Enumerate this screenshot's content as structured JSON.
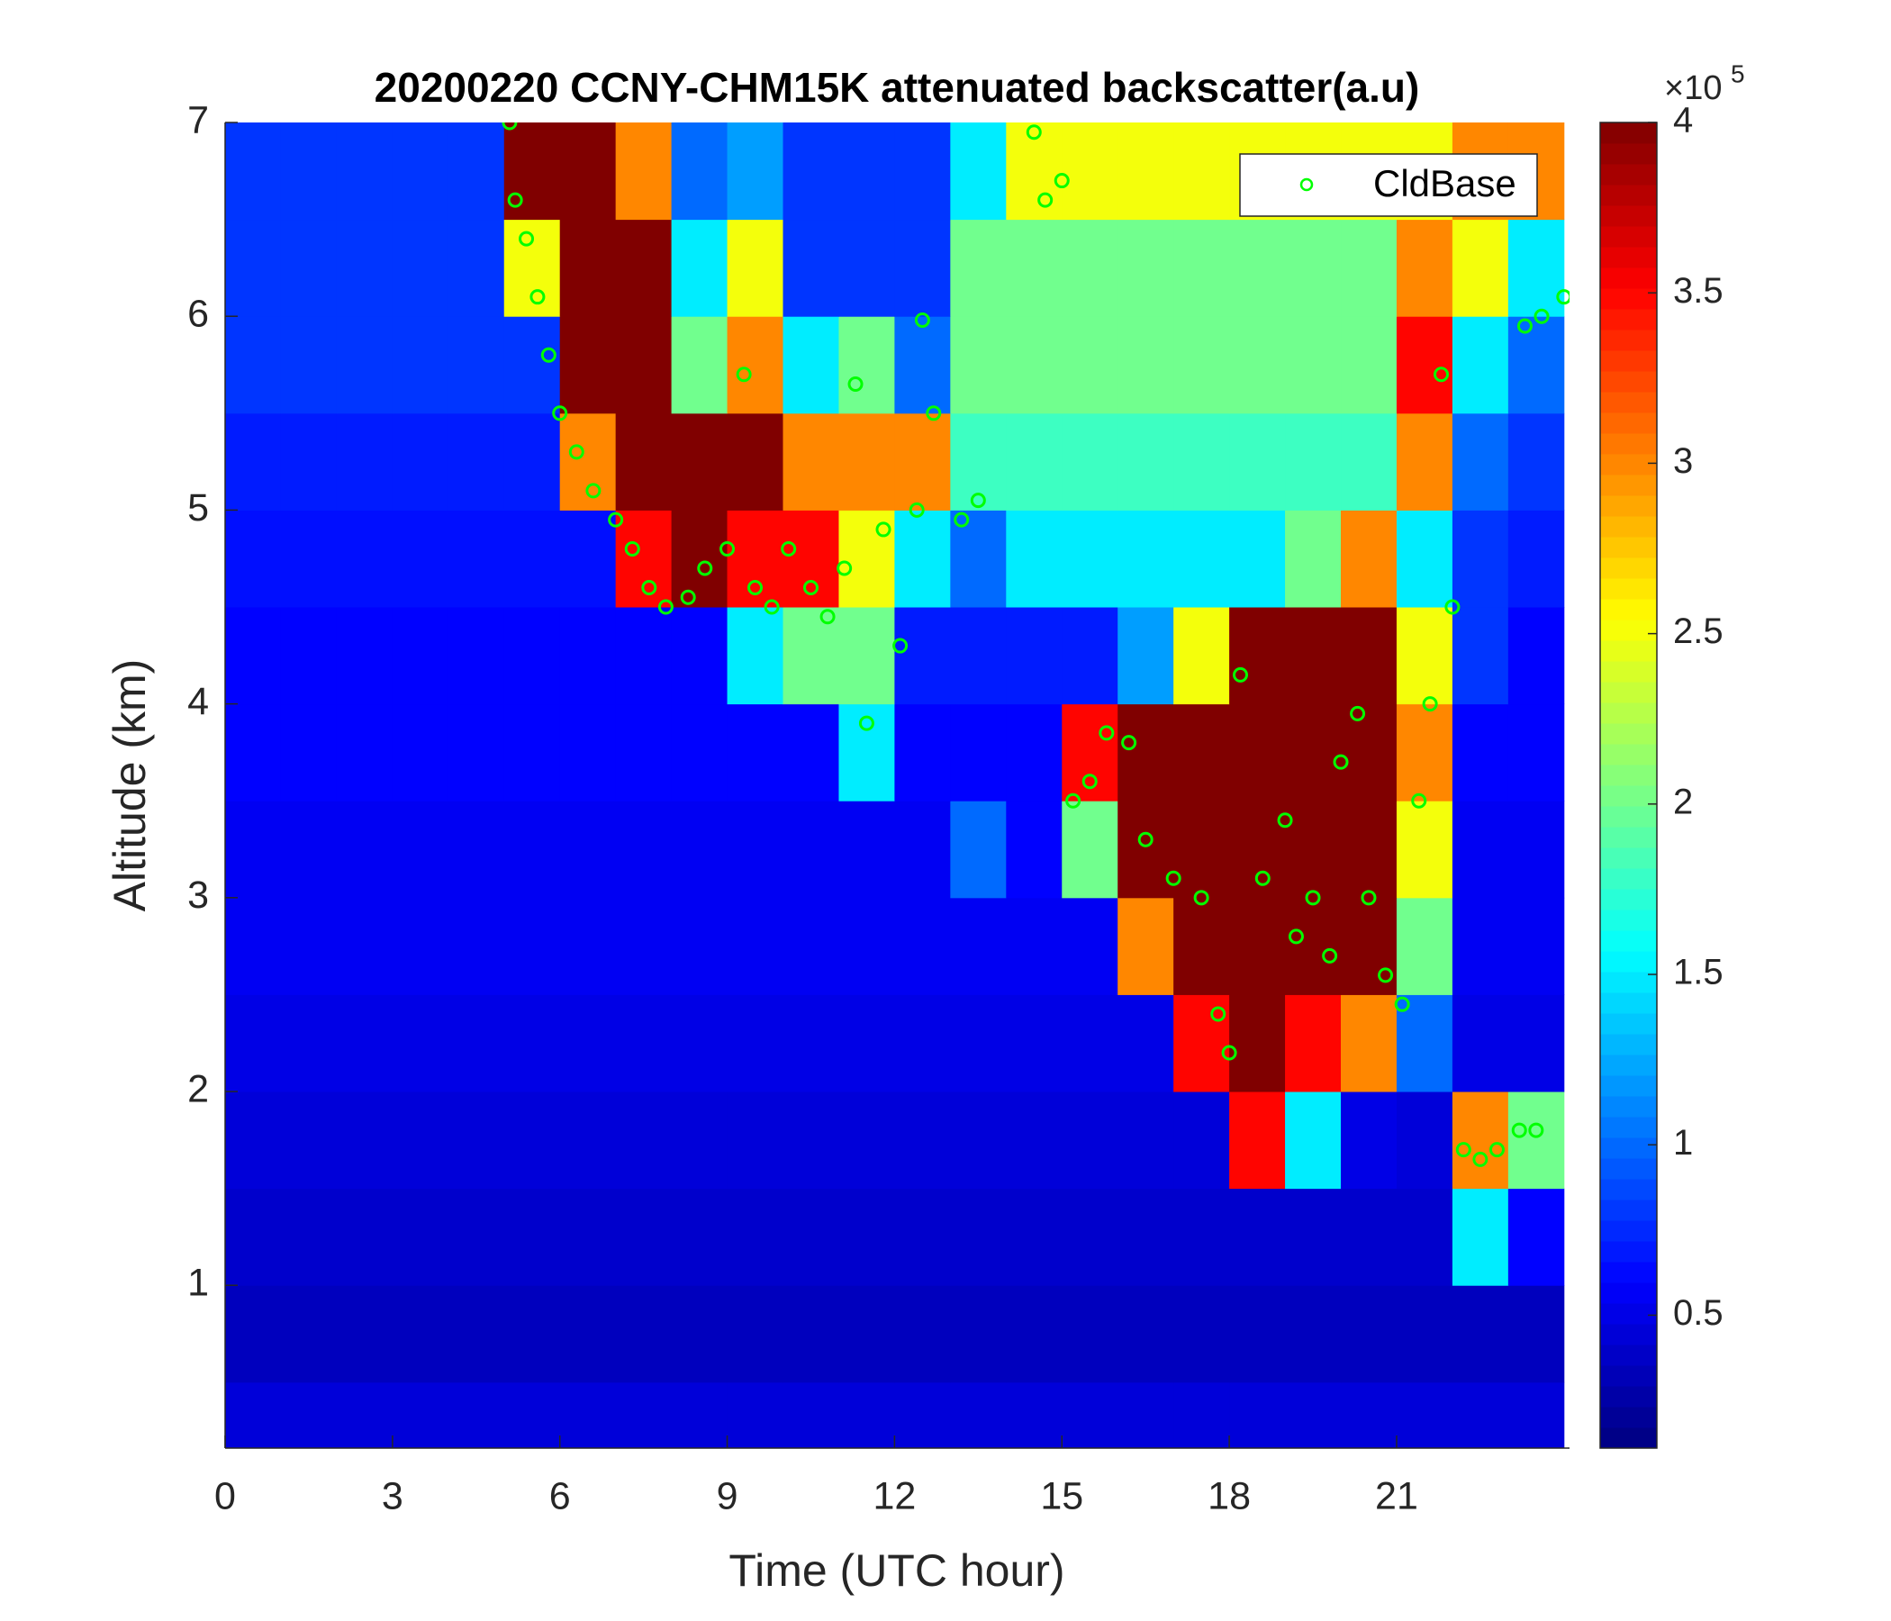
{
  "chart_data": {
    "type": "heatmap",
    "title": "20200220 CCNY-CHM15K attenuated backscatter(a.u)",
    "xlabel": "Time (UTC hour)",
    "ylabel": "Altitude (km)",
    "xlim": [
      0,
      24.1
    ],
    "ylim": [
      0.16,
      7
    ],
    "xticks": [
      0,
      3,
      6,
      9,
      12,
      15,
      18,
      21
    ],
    "yticks": [
      1,
      2,
      3,
      4,
      5,
      6,
      7
    ],
    "colormap": "jet",
    "clim": [
      11000,
      400000
    ],
    "cticks": [
      {
        "value": 50000,
        "label": "0.5"
      },
      {
        "value": 100000,
        "label": "1"
      },
      {
        "value": 150000,
        "label": "1.5"
      },
      {
        "value": 200000,
        "label": "2"
      },
      {
        "value": 250000,
        "label": "2.5"
      },
      {
        "value": 300000,
        "label": "3"
      },
      {
        "value": 350000,
        "label": "3.5"
      },
      {
        "value": 400000,
        "label": "4"
      }
    ],
    "colorbar_exponent": {
      "base": "×10",
      "power": "5"
    },
    "x_edges": [
      0,
      1,
      2,
      3,
      4,
      5,
      6,
      7,
      8,
      9,
      10,
      11,
      12,
      13,
      14,
      15,
      16,
      17,
      18,
      19,
      20,
      21,
      22,
      23,
      24
    ],
    "y_edges": [
      0,
      0.5,
      1,
      1.5,
      2,
      2.5,
      3,
      3.5,
      4,
      4.5,
      5,
      5.5,
      6,
      6.5,
      7
    ],
    "z": [
      [
        45000,
        45000,
        45000,
        45000,
        45000,
        45000,
        45000,
        45000,
        45000,
        45000,
        45000,
        45000,
        45000,
        45000,
        45000,
        45000,
        45000,
        45000,
        45000,
        45000,
        45000,
        45000,
        45000,
        45000
      ],
      [
        35000,
        35000,
        35000,
        35000,
        35000,
        35000,
        35000,
        35000,
        35000,
        35000,
        35000,
        35000,
        35000,
        35000,
        35000,
        35000,
        35000,
        35000,
        35000,
        35000,
        35000,
        35000,
        35000,
        35000
      ],
      [
        40000,
        40000,
        40000,
        40000,
        40000,
        40000,
        40000,
        40000,
        40000,
        40000,
        40000,
        40000,
        40000,
        40000,
        40000,
        40000,
        40000,
        40000,
        40000,
        40000,
        40000,
        40000,
        150000,
        60000
      ],
      [
        45000,
        45000,
        45000,
        45000,
        45000,
        45000,
        45000,
        45000,
        45000,
        45000,
        45000,
        45000,
        45000,
        45000,
        45000,
        45000,
        45000,
        45000,
        350000,
        150000,
        50000,
        45000,
        300000,
        200000
      ],
      [
        50000,
        50000,
        50000,
        50000,
        50000,
        50000,
        50000,
        50000,
        50000,
        50000,
        50000,
        50000,
        50000,
        50000,
        50000,
        50000,
        50000,
        350000,
        400000,
        350000,
        300000,
        100000,
        50000,
        50000
      ],
      [
        55000,
        55000,
        55000,
        55000,
        55000,
        55000,
        55000,
        55000,
        55000,
        55000,
        55000,
        55000,
        55000,
        55000,
        55000,
        55000,
        300000,
        400000,
        400000,
        400000,
        400000,
        200000,
        55000,
        55000
      ],
      [
        55000,
        55000,
        55000,
        55000,
        55000,
        55000,
        55000,
        55000,
        55000,
        55000,
        55000,
        55000,
        55000,
        100000,
        60000,
        200000,
        400000,
        400000,
        400000,
        400000,
        400000,
        250000,
        55000,
        55000
      ],
      [
        60000,
        60000,
        60000,
        60000,
        60000,
        60000,
        60000,
        60000,
        60000,
        60000,
        60000,
        150000,
        60000,
        60000,
        60000,
        350000,
        400000,
        400000,
        400000,
        400000,
        400000,
        300000,
        60000,
        60000
      ],
      [
        60000,
        60000,
        60000,
        60000,
        60000,
        60000,
        60000,
        60000,
        60000,
        150000,
        200000,
        200000,
        70000,
        70000,
        70000,
        70000,
        120000,
        250000,
        400000,
        400000,
        400000,
        250000,
        80000,
        60000
      ],
      [
        65000,
        65000,
        65000,
        65000,
        65000,
        65000,
        65000,
        350000,
        400000,
        350000,
        350000,
        250000,
        150000,
        100000,
        150000,
        150000,
        150000,
        150000,
        150000,
        200000,
        300000,
        150000,
        80000,
        70000
      ],
      [
        70000,
        70000,
        70000,
        70000,
        70000,
        70000,
        300000,
        400000,
        400000,
        400000,
        300000,
        300000,
        300000,
        180000,
        180000,
        180000,
        180000,
        180000,
        180000,
        180000,
        180000,
        300000,
        100000,
        80000
      ],
      [
        80000,
        80000,
        80000,
        80000,
        80000,
        80000,
        400000,
        400000,
        200000,
        300000,
        150000,
        200000,
        100000,
        200000,
        200000,
        200000,
        200000,
        200000,
        200000,
        200000,
        200000,
        350000,
        150000,
        100000
      ],
      [
        80000,
        80000,
        80000,
        80000,
        80000,
        250000,
        400000,
        400000,
        150000,
        250000,
        80000,
        80000,
        80000,
        200000,
        200000,
        200000,
        200000,
        200000,
        200000,
        200000,
        200000,
        300000,
        250000,
        150000
      ],
      [
        80000,
        80000,
        80000,
        80000,
        80000,
        400000,
        400000,
        300000,
        100000,
        120000,
        80000,
        80000,
        80000,
        150000,
        250000,
        250000,
        250000,
        250000,
        250000,
        250000,
        250000,
        250000,
        300000,
        300000
      ]
    ],
    "series": [
      {
        "name": "CldBase",
        "type": "scatter",
        "color": "#00ff00",
        "x": [
          5.1,
          5.2,
          5.4,
          5.6,
          5.8,
          6.0,
          6.3,
          6.6,
          7.0,
          7.3,
          7.6,
          7.9,
          8.3,
          8.6,
          9.0,
          9.3,
          9.5,
          9.8,
          10.1,
          10.5,
          10.8,
          11.1,
          11.5,
          11.3,
          11.8,
          12.1,
          12.4,
          12.7,
          12.5,
          13.2,
          13.5,
          14.5,
          14.7,
          15.0,
          15.2,
          15.5,
          15.8,
          16.2,
          16.5,
          17.0,
          17.5,
          17.8,
          18.0,
          18.2,
          18.6,
          19.0,
          19.2,
          19.5,
          19.8,
          20.0,
          20.3,
          20.5,
          20.8,
          21.1,
          21.4,
          21.6,
          21.8,
          22.0,
          22.2,
          22.5,
          22.8,
          23.2,
          23.5,
          23.3,
          23.6,
          24.0
        ],
        "y": [
          7.0,
          6.6,
          6.4,
          6.1,
          5.8,
          5.5,
          5.3,
          5.1,
          4.95,
          4.8,
          4.6,
          4.5,
          4.55,
          4.7,
          4.8,
          5.7,
          4.6,
          4.5,
          4.8,
          4.6,
          4.45,
          4.7,
          3.9,
          5.65,
          4.9,
          4.3,
          5.0,
          5.5,
          5.98,
          4.95,
          5.05,
          6.95,
          6.6,
          6.7,
          3.5,
          3.6,
          3.85,
          3.8,
          3.3,
          3.1,
          3.0,
          2.4,
          2.2,
          4.15,
          3.1,
          3.4,
          2.8,
          3.0,
          2.7,
          3.7,
          3.95,
          3.0,
          2.6,
          2.45,
          3.5,
          4.0,
          5.7,
          4.5,
          1.7,
          1.65,
          1.7,
          1.8,
          1.8,
          5.95,
          6.0,
          6.1
        ]
      }
    ],
    "legend": "northeast"
  }
}
